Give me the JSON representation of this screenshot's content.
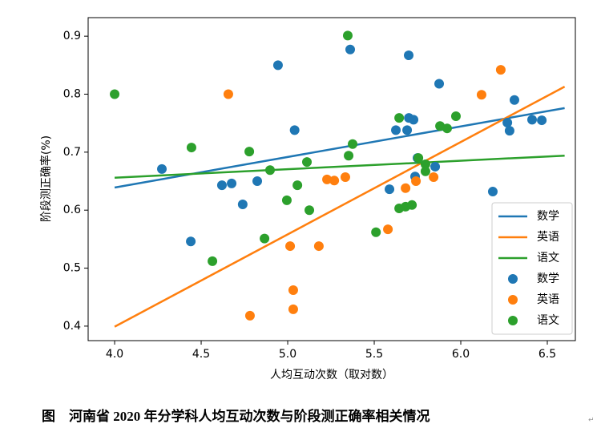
{
  "chart_data": {
    "type": "scatter",
    "xlabel": "人均互动次数（取对数）",
    "ylabel": "阶段测正确率(%)",
    "caption": "图　河南省 2020 年分学科人均互动次数与阶段测正确率相关情况",
    "caption_mark": "↵",
    "xlim": [
      3.847,
      6.662
    ],
    "ylim": [
      0.375,
      0.932
    ],
    "xticks": [
      {
        "value": 4,
        "label": "4.0"
      },
      4.5,
      {
        "value": 5,
        "label": "5.0"
      },
      5.5,
      {
        "value": 6,
        "label": "6.0"
      },
      6.5
    ],
    "yticks": [
      0.4,
      0.5,
      0.6,
      0.7,
      0.8,
      0.9
    ],
    "legend": "lower right",
    "series": [
      {
        "name": "数学",
        "mode": "line",
        "color": "#1f77b4",
        "x": [
          4.0,
          6.6
        ],
        "values": [
          0.639,
          0.776
        ]
      },
      {
        "name": "英语",
        "mode": "line",
        "color": "#ff7f0e",
        "x": [
          4.0,
          6.6
        ],
        "values": [
          0.399,
          0.813
        ]
      },
      {
        "name": "语文",
        "mode": "line",
        "color": "#2ca02c",
        "x": [
          4.0,
          6.6
        ],
        "values": [
          0.656,
          0.694
        ]
      },
      {
        "name": "数学",
        "mode": "markers",
        "color": "#1f77b4",
        "x": [
          4.273,
          4.44,
          4.62,
          4.676,
          4.74,
          4.824,
          4.944,
          5.04,
          5.361,
          5.588,
          5.625,
          5.699,
          5.69,
          5.7,
          5.727,
          5.736,
          5.75,
          5.852,
          5.875,
          6.185,
          6.269,
          6.282,
          6.31,
          6.412,
          6.468
        ],
        "values": [
          0.671,
          0.546,
          0.643,
          0.646,
          0.61,
          0.65,
          0.85,
          0.738,
          0.877,
          0.636,
          0.738,
          0.867,
          0.738,
          0.759,
          0.756,
          0.658,
          0.69,
          0.675,
          0.818,
          0.632,
          0.751,
          0.737,
          0.79,
          0.756,
          0.755
        ]
      },
      {
        "name": "英语",
        "mode": "markers",
        "color": "#ff7f0e",
        "x": [
          4.657,
          4.782,
          5.014,
          5.032,
          5.032,
          5.18,
          5.227,
          5.269,
          5.333,
          5.579,
          5.681,
          5.741,
          5.843,
          6.12,
          6.231
        ],
        "values": [
          0.8,
          0.418,
          0.538,
          0.462,
          0.429,
          0.538,
          0.653,
          0.651,
          0.657,
          0.567,
          0.638,
          0.65,
          0.657,
          0.799,
          0.842
        ]
      },
      {
        "name": "语文",
        "mode": "markers",
        "color": "#2ca02c",
        "x": [
          4.0,
          4.444,
          4.565,
          4.778,
          4.866,
          4.898,
          4.995,
          5.056,
          5.111,
          5.125,
          5.347,
          5.352,
          5.375,
          5.51,
          5.644,
          5.644,
          5.681,
          5.718,
          5.755,
          5.796,
          5.796,
          5.88,
          5.921,
          5.972
        ],
        "values": [
          0.8,
          0.708,
          0.512,
          0.701,
          0.551,
          0.669,
          0.617,
          0.643,
          0.683,
          0.6,
          0.901,
          0.694,
          0.714,
          0.562,
          0.759,
          0.603,
          0.606,
          0.609,
          0.69,
          0.667,
          0.679,
          0.745,
          0.741,
          0.762
        ]
      }
    ]
  }
}
